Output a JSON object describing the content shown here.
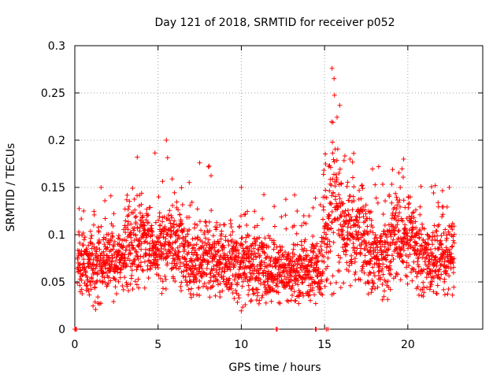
{
  "chart_data": {
    "type": "scatter",
    "title": "Day 121 of 2018, SRMTID for receiver p052",
    "xlabel": "GPS time / hours",
    "ylabel": "SRMTID / TECUs",
    "xlim": [
      0,
      24.5
    ],
    "ylim": [
      0,
      0.3
    ],
    "xticks": [
      0,
      5,
      10,
      15,
      20
    ],
    "xtick_labels": [
      "0",
      "5",
      "10",
      "15",
      "20"
    ],
    "yticks": [
      0,
      0.05,
      0.1,
      0.15,
      0.2,
      0.25,
      0.3
    ],
    "ytick_labels": [
      "0",
      "0.05",
      "0.1",
      "0.15",
      "0.2",
      "0.25",
      "0.3"
    ],
    "grid": true,
    "marker": "+",
    "color": "#ff0000",
    "series": [
      {
        "name": "SRMTID",
        "segments": [
          {
            "x_start": 0.15,
            "x_end": 3.0,
            "mean": 0.07,
            "spread": 0.022,
            "peak": 0.15,
            "floor": 0.02
          },
          {
            "x_start": 3.0,
            "x_end": 4.5,
            "mean": 0.092,
            "spread": 0.026,
            "peak": 0.182,
            "floor": 0.04
          },
          {
            "x_start": 4.5,
            "x_end": 6.5,
            "mean": 0.09,
            "spread": 0.027,
            "peak": 0.2,
            "floor": 0.03
          },
          {
            "x_start": 6.5,
            "x_end": 8.5,
            "mean": 0.075,
            "spread": 0.024,
            "peak": 0.176,
            "floor": 0.033
          },
          {
            "x_start": 8.5,
            "x_end": 11.5,
            "mean": 0.068,
            "spread": 0.022,
            "peak": 0.15,
            "floor": 0.019
          },
          {
            "x_start": 11.5,
            "x_end": 14.9,
            "mean": 0.062,
            "spread": 0.02,
            "peak": 0.142,
            "floor": 0.027
          },
          {
            "x_start": 14.9,
            "x_end": 16.0,
            "mean": 0.115,
            "spread": 0.045,
            "peak": 0.276,
            "floor": 0.035
          },
          {
            "x_start": 16.0,
            "x_end": 17.5,
            "mean": 0.1,
            "spread": 0.03,
            "peak": 0.186,
            "floor": 0.04
          },
          {
            "x_start": 17.5,
            "x_end": 19.0,
            "mean": 0.078,
            "spread": 0.026,
            "peak": 0.172,
            "floor": 0.03
          },
          {
            "x_start": 19.0,
            "x_end": 20.5,
            "mean": 0.1,
            "spread": 0.03,
            "peak": 0.18,
            "floor": 0.04
          },
          {
            "x_start": 20.5,
            "x_end": 22.8,
            "mean": 0.075,
            "spread": 0.022,
            "peak": 0.152,
            "floor": 0.034
          }
        ],
        "zero_points_x": [
          0.0,
          0.05,
          0.1,
          12.1,
          12.15,
          14.45,
          14.5,
          15.1,
          15.2
        ]
      }
    ]
  }
}
